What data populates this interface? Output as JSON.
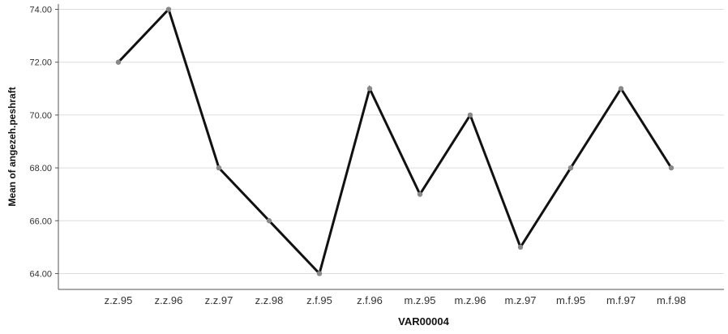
{
  "chart_data": {
    "type": "line",
    "xlabel": "VAR00004",
    "ylabel": "Mean of angezeh.peshraft",
    "categories": [
      "z.z.95",
      "z.z.96",
      "z.z.97",
      "z.z.98",
      "z.f.95",
      "z.f.96",
      "m.z.95",
      "m.z.96",
      "m.z.97",
      "m.f.95",
      "m.f.97",
      "m.f.98"
    ],
    "series": [
      {
        "values": [
          72,
          74,
          68,
          66,
          64,
          71,
          67,
          70,
          65,
          68,
          71,
          68
        ]
      }
    ],
    "ylim": [
      63.4,
      74.2
    ],
    "yticks": [
      "64.00",
      "66.00",
      "68.00",
      "70.00",
      "72.00",
      "74.00"
    ],
    "grid": true,
    "colors": {
      "line": "#111111",
      "marker": "#888888",
      "grid": "#dcdcdc",
      "axis": "#555555"
    }
  }
}
